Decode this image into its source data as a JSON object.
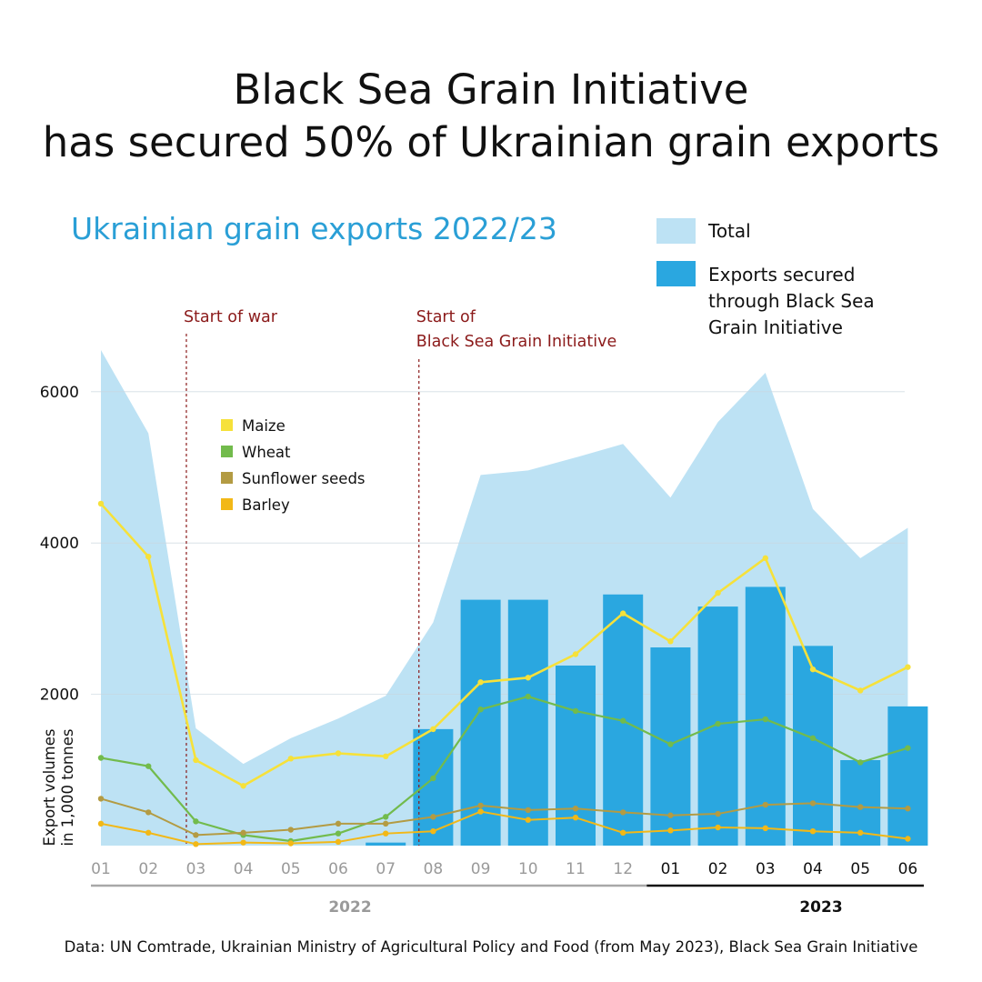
{
  "title": {
    "line1": "Black Sea Grain Initiative",
    "line2": "has secured 50% of Ukrainian grain exports"
  },
  "colors": {
    "total": "#bde2f4",
    "secured": "#2aa7e0",
    "maize": "#f6e13a",
    "wheat": "#72bb4c",
    "sunflower": "#b39b43",
    "barley": "#f2b817",
    "event": "#8b1a1a",
    "subtitle": "#2a9fd6"
  },
  "legend": {
    "total": "Total",
    "secured_line1": "Exports secured",
    "secured_line2": "through Black Sea",
    "secured_line3": "Grain Initiative"
  },
  "footer": "Data: UN Comtrade, Ukrainian Ministry of Agricultural Policy and Food (from May 2023), Black Sea Grain Initiative",
  "chart_data": {
    "type": "area+bar+line",
    "title": "Ukrainian grain exports 2022/23",
    "ylabel_line1": "Export volumes",
    "ylabel_line2": "in 1,000 tonnes",
    "ylim": [
      0,
      6600
    ],
    "yticks": [
      2000,
      4000,
      6000
    ],
    "grid": true,
    "categories": [
      "01",
      "02",
      "03",
      "04",
      "05",
      "06",
      "07",
      "08",
      "09",
      "10",
      "11",
      "12",
      "01",
      "02",
      "03",
      "04",
      "05",
      "06"
    ],
    "year_groups": [
      {
        "label": "2022",
        "from": 0,
        "to": 11
      },
      {
        "label": "2023",
        "from": 12,
        "to": 17
      }
    ],
    "events": [
      {
        "label_lines": [
          "Start of war"
        ],
        "position": 1.8
      },
      {
        "label_lines": [
          "Start of",
          "Black Sea Grain Initiative"
        ],
        "position": 6.7
      }
    ],
    "total": [
      6550,
      5450,
      1550,
      1080,
      1420,
      1680,
      1980,
      2950,
      4900,
      4960,
      5130,
      5310,
      4600,
      5600,
      6250,
      4450,
      3800,
      4200
    ],
    "secured": [
      0,
      0,
      0,
      0,
      0,
      0,
      40,
      1540,
      3250,
      3250,
      2380,
      3320,
      2620,
      3160,
      3420,
      2640,
      1130,
      1840
    ],
    "line_legend": [
      "Maize",
      "Wheat",
      "Sunflower seeds",
      "Barley"
    ],
    "series": [
      {
        "name": "Maize",
        "values": [
          4520,
          3820,
          1130,
          790,
          1150,
          1220,
          1180,
          1540,
          2160,
          2220,
          2530,
          3070,
          2700,
          3340,
          3800,
          2330,
          2050,
          2360
        ]
      },
      {
        "name": "Wheat",
        "values": [
          1160,
          1050,
          320,
          140,
          60,
          160,
          380,
          890,
          1800,
          1970,
          1780,
          1650,
          1340,
          1610,
          1670,
          1420,
          1100,
          1290
        ]
      },
      {
        "name": "Sunflower seeds",
        "values": [
          620,
          440,
          140,
          170,
          210,
          290,
          290,
          380,
          530,
          470,
          490,
          440,
          400,
          420,
          540,
          560,
          510,
          490
        ]
      },
      {
        "name": "Barley",
        "values": [
          290,
          170,
          20,
          40,
          30,
          50,
          160,
          190,
          450,
          340,
          370,
          170,
          200,
          240,
          230,
          190,
          170,
          90
        ]
      }
    ]
  }
}
